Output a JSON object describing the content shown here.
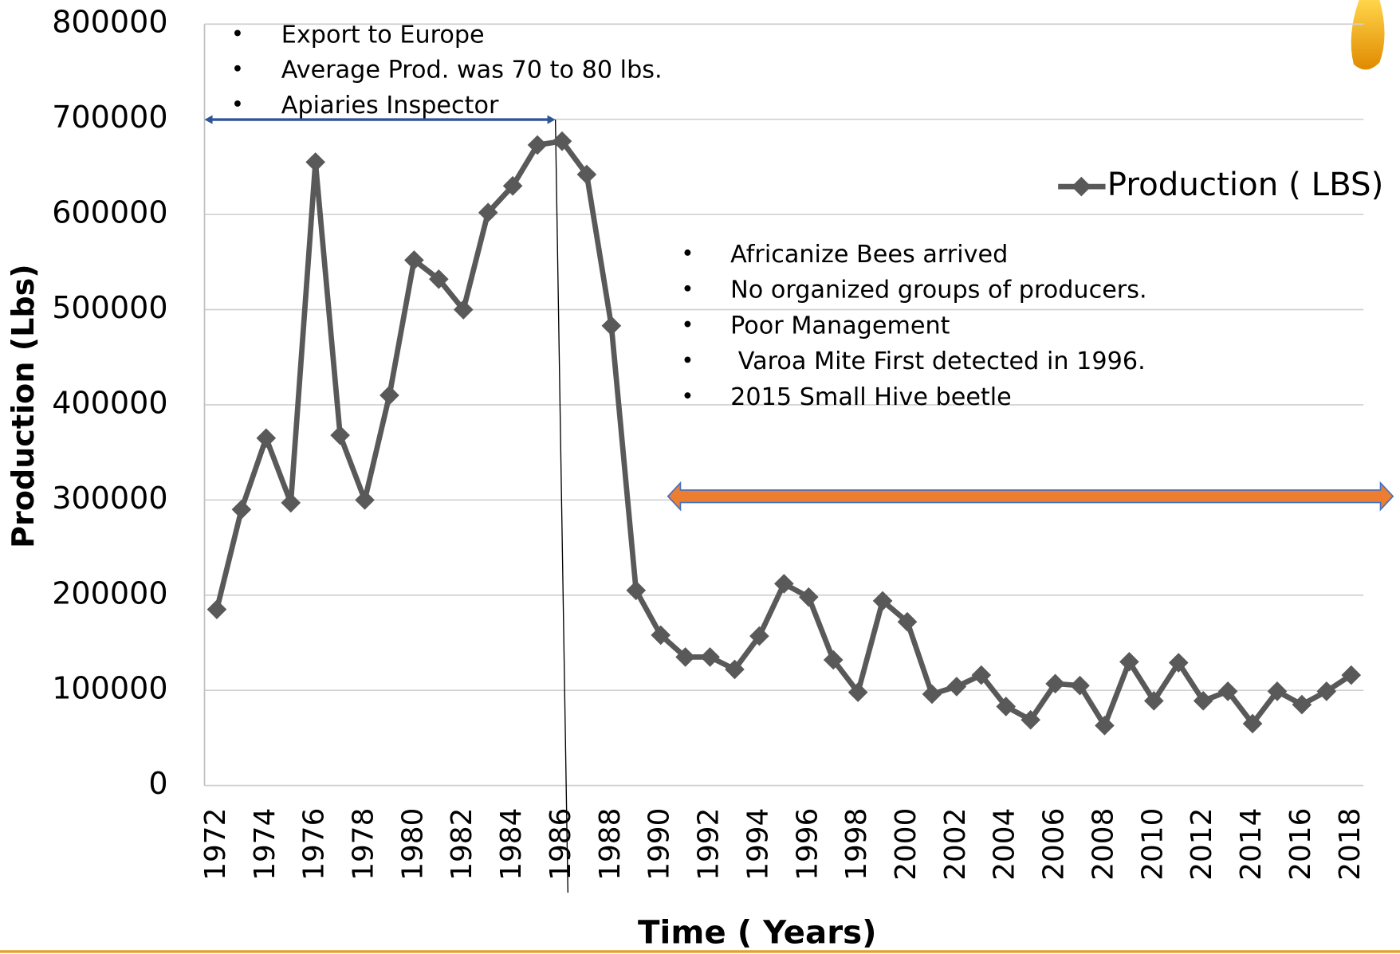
{
  "chart_data": {
    "type": "line",
    "x_label": "Time ( Years)",
    "y_label": "Production (Lbs)",
    "categories": [
      "1972",
      null,
      "1974",
      null,
      "1976",
      null,
      "1978",
      null,
      "1980",
      null,
      "1982",
      null,
      "1984",
      null,
      "1986",
      null,
      "1988",
      null,
      "1990",
      null,
      "1992",
      null,
      "1994",
      null,
      "1996",
      null,
      "1998",
      null,
      "2000",
      null,
      "2002",
      null,
      "2004",
      null,
      "2006",
      null,
      "2008",
      null,
      "2010",
      null,
      "2012",
      null,
      "2014",
      null,
      "2016",
      null,
      "2018"
    ],
    "series": [
      {
        "name": "Production ( LBS)",
        "color": "#595959",
        "values": [
          185000,
          290000,
          365000,
          297000,
          655000,
          368000,
          300000,
          410000,
          552000,
          532000,
          500000,
          602000,
          630000,
          673000,
          677000,
          642000,
          483000,
          205000,
          158000,
          135000,
          135000,
          122000,
          157000,
          212000,
          198000,
          132000,
          98000,
          194000,
          172000,
          96000,
          104000,
          116000,
          83000,
          69000,
          107000,
          105000,
          63000,
          130000,
          89000,
          129000,
          89000,
          99000,
          65000,
          99000,
          85000,
          99000,
          116000
        ]
      }
    ],
    "ylim": [
      0,
      800000
    ],
    "yticks": [
      0,
      100000,
      200000,
      300000,
      400000,
      500000,
      600000,
      700000,
      800000
    ],
    "grid": true,
    "legend": "upper right",
    "annotations": [
      [
        "Export to Europe",
        "Average Prod. was 70 to 80 lbs.",
        "Apiaries Inspector"
      ],
      [
        "Africanize Bees arrived",
        "No organized groups of producers.",
        "Poor Management",
        " Varoa Mite First detected in 1996.",
        "2015 Small Hive beetle"
      ]
    ]
  }
}
